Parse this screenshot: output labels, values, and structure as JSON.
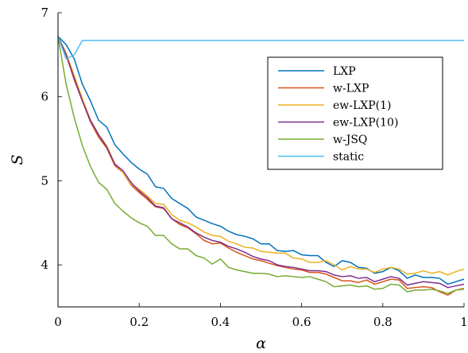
{
  "chart_data": {
    "type": "line",
    "xlabel": "α",
    "ylabel": "S",
    "xlim": [
      0,
      1
    ],
    "ylim": [
      3.5,
      7
    ],
    "xticks": [
      0,
      0.2,
      0.4,
      0.6,
      0.8,
      1
    ],
    "xtick_labels": [
      "0",
      "0.2",
      "0.4",
      "0.6",
      "0.8",
      "1"
    ],
    "yticks": [
      4,
      5,
      6,
      7
    ],
    "ytick_labels": [
      "4",
      "5",
      "6",
      "7"
    ],
    "grid": false,
    "legend_position": "top-right",
    "x": [
      0,
      0.02,
      0.04,
      0.06,
      0.08,
      0.1,
      0.12,
      0.14,
      0.16,
      0.18,
      0.2,
      0.22,
      0.24,
      0.26,
      0.28,
      0.3,
      0.32,
      0.34,
      0.36,
      0.38,
      0.4,
      0.42,
      0.44,
      0.46,
      0.48,
      0.5,
      0.52,
      0.54,
      0.56,
      0.58,
      0.6,
      0.62,
      0.64,
      0.66,
      0.68,
      0.7,
      0.72,
      0.74,
      0.76,
      0.78,
      0.8,
      0.82,
      0.84,
      0.86,
      0.88,
      0.9,
      0.92,
      0.94,
      0.96,
      0.98,
      1.0
    ],
    "series": [
      {
        "name": "LXP",
        "color": "#0072BD",
        "values": [
          6.72,
          6.62,
          6.45,
          6.15,
          5.95,
          5.72,
          5.64,
          5.43,
          5.32,
          5.22,
          5.14,
          5.08,
          4.93,
          4.91,
          4.79,
          4.73,
          4.67,
          4.57,
          4.53,
          4.49,
          4.46,
          4.4,
          4.36,
          4.34,
          4.31,
          4.25,
          4.25,
          4.17,
          4.16,
          4.17,
          4.12,
          4.11,
          4.11,
          4.03,
          3.98,
          4.05,
          4.03,
          3.97,
          3.96,
          3.9,
          3.92,
          3.97,
          3.93,
          3.84,
          3.88,
          3.85,
          3.85,
          3.84,
          3.77,
          3.8,
          3.83
        ]
      },
      {
        "name": "w-LXP",
        "color": "#D95319",
        "values": [
          6.72,
          6.5,
          6.2,
          5.95,
          5.7,
          5.52,
          5.39,
          5.18,
          5.1,
          4.95,
          4.86,
          4.78,
          4.69,
          4.67,
          4.55,
          4.48,
          4.44,
          4.37,
          4.29,
          4.25,
          4.26,
          4.2,
          4.15,
          4.11,
          4.07,
          4.05,
          4.02,
          3.99,
          3.97,
          3.95,
          3.94,
          3.91,
          3.91,
          3.89,
          3.85,
          3.81,
          3.81,
          3.79,
          3.82,
          3.77,
          3.8,
          3.83,
          3.82,
          3.72,
          3.73,
          3.74,
          3.73,
          3.68,
          3.64,
          3.7,
          3.72
        ]
      },
      {
        "name": "ew-LXP(1)",
        "color": "#EDB120",
        "values": [
          6.72,
          6.52,
          6.25,
          5.98,
          5.72,
          5.55,
          5.42,
          5.2,
          5.1,
          4.96,
          4.9,
          4.82,
          4.73,
          4.72,
          4.6,
          4.53,
          4.5,
          4.45,
          4.39,
          4.35,
          4.34,
          4.28,
          4.25,
          4.21,
          4.2,
          4.16,
          4.15,
          4.14,
          4.14,
          4.08,
          4.07,
          4.03,
          4.03,
          4.05,
          4.0,
          3.94,
          3.98,
          3.95,
          3.95,
          3.91,
          3.95,
          3.97,
          3.95,
          3.89,
          3.9,
          3.93,
          3.9,
          3.92,
          3.88,
          3.92,
          3.95
        ]
      },
      {
        "name": "ew-LXP(10)",
        "color": "#7E2F8E",
        "values": [
          6.72,
          6.5,
          6.22,
          5.95,
          5.72,
          5.55,
          5.4,
          5.2,
          5.12,
          4.98,
          4.88,
          4.8,
          4.7,
          4.68,
          4.55,
          4.5,
          4.45,
          4.38,
          4.33,
          4.29,
          4.27,
          4.22,
          4.19,
          4.15,
          4.1,
          4.07,
          4.05,
          4.0,
          3.98,
          3.97,
          3.95,
          3.93,
          3.93,
          3.92,
          3.88,
          3.86,
          3.87,
          3.84,
          3.85,
          3.8,
          3.83,
          3.86,
          3.84,
          3.76,
          3.78,
          3.8,
          3.79,
          3.78,
          3.73,
          3.75,
          3.77
        ]
      },
      {
        "name": "w-JSQ",
        "color": "#77AC30",
        "values": [
          6.72,
          6.15,
          5.75,
          5.42,
          5.17,
          4.98,
          4.9,
          4.73,
          4.64,
          4.56,
          4.5,
          4.46,
          4.35,
          4.35,
          4.25,
          4.19,
          4.19,
          4.11,
          4.08,
          4.01,
          4.07,
          3.97,
          3.94,
          3.92,
          3.9,
          3.9,
          3.89,
          3.86,
          3.87,
          3.86,
          3.85,
          3.86,
          3.83,
          3.8,
          3.74,
          3.75,
          3.76,
          3.74,
          3.75,
          3.71,
          3.72,
          3.77,
          3.76,
          3.68,
          3.7,
          3.7,
          3.71,
          3.69,
          3.66,
          3.7,
          3.71
        ]
      },
      {
        "name": "static",
        "color": "#4DBEEE",
        "values": [
          6.72,
          6.45,
          6.5,
          6.67,
          6.67,
          6.67,
          6.67,
          6.67,
          6.67,
          6.67,
          6.67,
          6.67,
          6.67,
          6.67,
          6.67,
          6.67,
          6.67,
          6.67,
          6.67,
          6.67,
          6.67,
          6.67,
          6.67,
          6.67,
          6.67,
          6.67,
          6.67,
          6.67,
          6.67,
          6.67,
          6.67,
          6.67,
          6.67,
          6.67,
          6.67,
          6.67,
          6.67,
          6.67,
          6.67,
          6.67,
          6.67,
          6.67,
          6.67,
          6.67,
          6.67,
          6.67,
          6.67,
          6.67,
          6.67,
          6.67,
          6.67
        ]
      }
    ]
  }
}
